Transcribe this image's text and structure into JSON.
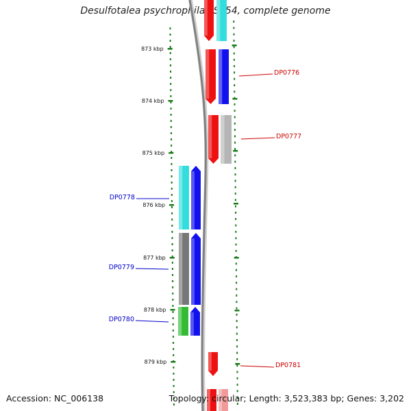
{
  "title": "Desulfotalea psychrophila LSv54, complete genome",
  "footer": {
    "accession": "Accession: NC_006138",
    "topology": "Topology: circular; Length: 3,523,383 bp; Genes: 3,202"
  },
  "ticks": [
    "873 kbp",
    "874 kbp",
    "875 kbp",
    "876 kbp",
    "877 kbp",
    "878 kbp",
    "879 kbp"
  ],
  "colors": {
    "backbone": "#808080",
    "tick": "#1a7a1a",
    "label_reverse": "#cc0000",
    "label_forward": "#0000cc",
    "red": "#ee1111",
    "cyan": "#33dddd",
    "blue": "#1111ee",
    "gray": "#777777",
    "light_gray": "#b5b5b5",
    "green": "#33bb33"
  },
  "labels": [
    {
      "text": "DP0776",
      "color": "#cc0000",
      "side": "right"
    },
    {
      "text": "DP0777",
      "color": "#cc0000",
      "side": "right"
    },
    {
      "text": "DP0778",
      "color": "#0000cc",
      "side": "left"
    },
    {
      "text": "DP0779",
      "color": "#0000cc",
      "side": "left"
    },
    {
      "text": "DP0780",
      "color": "#0000cc",
      "side": "left"
    },
    {
      "text": "DP0781",
      "color": "#cc0000",
      "side": "right"
    }
  ]
}
